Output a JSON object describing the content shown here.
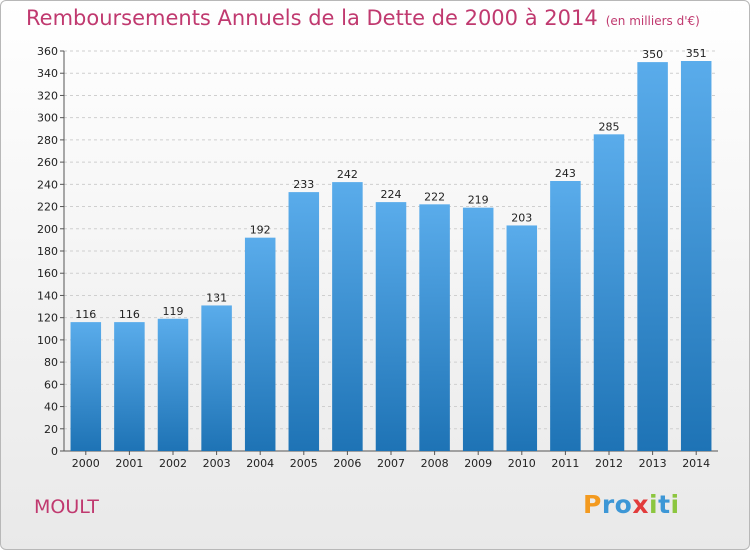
{
  "title": "Remboursements Annuels de la Dette de 2000 à 2014",
  "subtitle": "(en milliers d'€)",
  "place": "MOULT",
  "logo": {
    "letters": [
      "P",
      "r",
      "o",
      "x",
      "i",
      "t",
      "i"
    ],
    "colors": [
      "#f39a1f",
      "#3d97d6",
      "#3d97d6",
      "#e23c3c",
      "#8cc63f",
      "#3d97d6",
      "#8cc63f"
    ]
  },
  "colors": {
    "bar_top": "#5aaceb",
    "bar_bottom": "#1e73b5",
    "title": "#c0396f"
  },
  "chart_data": {
    "type": "bar",
    "categories": [
      "2000",
      "2001",
      "2002",
      "2003",
      "2004",
      "2005",
      "2006",
      "2007",
      "2008",
      "2009",
      "2010",
      "2011",
      "2012",
      "2013",
      "2014"
    ],
    "values": [
      116,
      116,
      119,
      131,
      192,
      233,
      242,
      224,
      222,
      219,
      203,
      243,
      285,
      350,
      351
    ],
    "title": "Remboursements Annuels de la Dette de 2000 à 2014",
    "xlabel": "",
    "ylabel": "",
    "ylim": [
      0,
      360
    ],
    "yticks": [
      0,
      20,
      40,
      60,
      80,
      100,
      120,
      140,
      160,
      180,
      200,
      220,
      240,
      260,
      280,
      300,
      320,
      340,
      360
    ],
    "grid": true,
    "legend": "none"
  }
}
